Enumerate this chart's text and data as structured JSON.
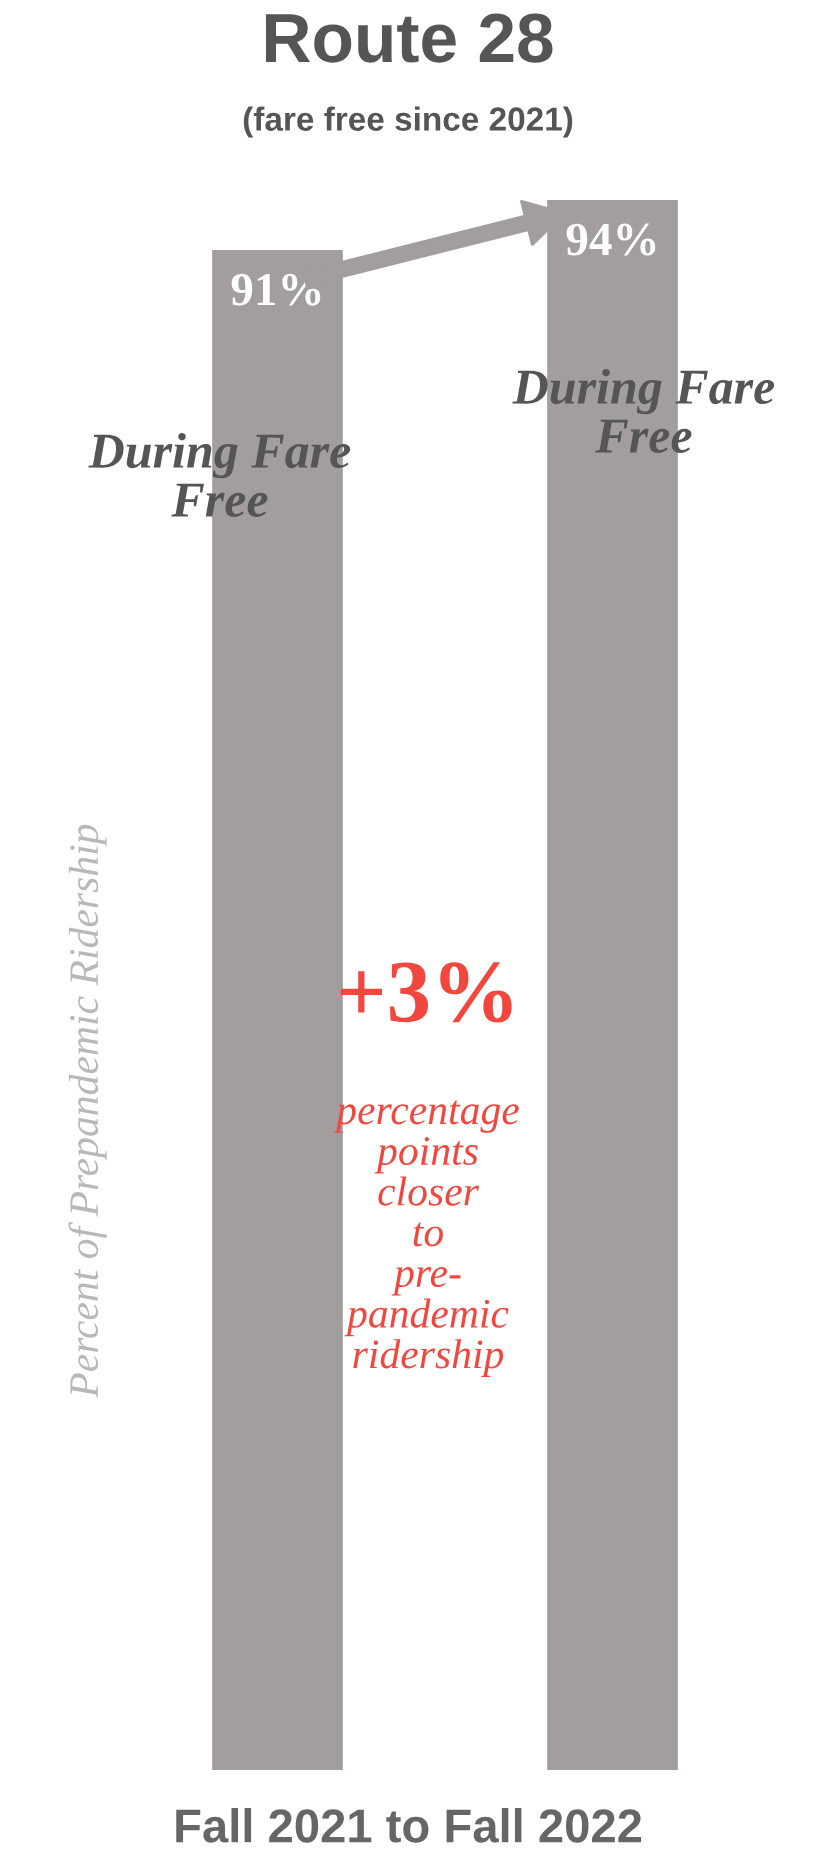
{
  "chart_data": {
    "type": "bar",
    "title": "Route 28",
    "subtitle": "(fare free since 2021)",
    "xlabel": "Fall 2021 to Fall 2022",
    "ylabel": "Percent of Prepandemic Ridership",
    "categories": [
      null,
      null
    ],
    "values": [
      91,
      94
    ],
    "color": "#a19e9d",
    "value_labels": [
      "91%",
      "94%"
    ],
    "annotations": [
      "During Fare Free",
      "During Fare Free",
      "+3%",
      "percentage points closer to pre-pandemic ridership"
    ],
    "tick_labels": false,
    "grid": false,
    "legend": false
  }
}
